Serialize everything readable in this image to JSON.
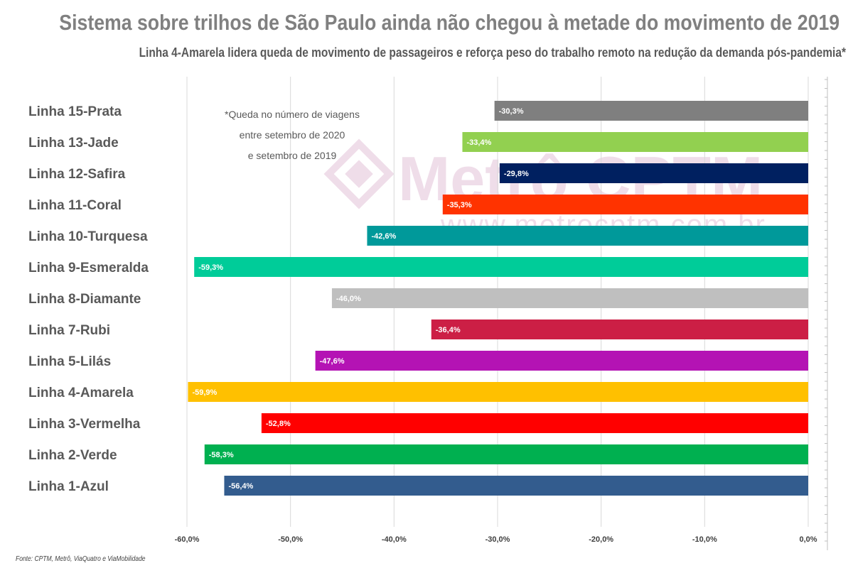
{
  "title": "Sistema sobre trilhos de São Paulo ainda não chegou à metade do movimento de 2019",
  "subtitle": "Linha 4-Amarela lidera queda de movimento de passageiros e reforça peso do trabalho remoto na redução da demanda pós-pandemia*",
  "note_lines": [
    "*Queda no número de viagens",
    "entre setembro de 2020",
    "e setembro de 2019"
  ],
  "watermark": {
    "brand": "Metrô CPTM",
    "url": "www.metrocptm.com.br"
  },
  "source": "Fonte: CPTM, Metrô, ViaQuatro e ViaMobilidade",
  "chart_data": {
    "type": "bar",
    "orientation": "horizontal",
    "categories": [
      "Linha 15-Prata",
      "Linha 13-Jade",
      "Linha 12-Safira",
      "Linha 11-Coral",
      "Linha 10-Turquesa",
      "Linha 9-Esmeralda",
      "Linha 8-Diamante",
      "Linha 7-Rubi",
      "Linha 5-Lilás",
      "Linha 4-Amarela",
      "Linha 3-Vermelha",
      "Linha 2-Verde",
      "Linha 1-Azul"
    ],
    "values": [
      -30.3,
      -33.4,
      -29.8,
      -35.3,
      -42.6,
      -59.3,
      -46.0,
      -36.4,
      -47.6,
      -59.9,
      -52.8,
      -58.3,
      -56.4
    ],
    "value_labels": [
      "-30,3%",
      "-33,4%",
      "-29,8%",
      "-35,3%",
      "-42,6%",
      "-59,3%",
      "-46,0%",
      "-36,4%",
      "-47,6%",
      "-59,9%",
      "-52,8%",
      "-58,3%",
      "-56,4%"
    ],
    "colors": [
      "#7f7f7f",
      "#92d050",
      "#002060",
      "#ff3300",
      "#00999a",
      "#00cc99",
      "#bfbfbf",
      "#cc1f45",
      "#b413b4",
      "#ffc000",
      "#ff0000",
      "#00b050",
      "#335c8e"
    ],
    "xlim": [
      -60,
      0
    ],
    "x_ticks": [
      -60,
      -50,
      -40,
      -30,
      -20,
      -10,
      0
    ],
    "x_tick_labels": [
      "-60,0%",
      "-50,0%",
      "-40,0%",
      "-30,0%",
      "-20,0%",
      "-10,0%",
      "0,0%"
    ],
    "grid": "vertical",
    "legend": "none"
  }
}
